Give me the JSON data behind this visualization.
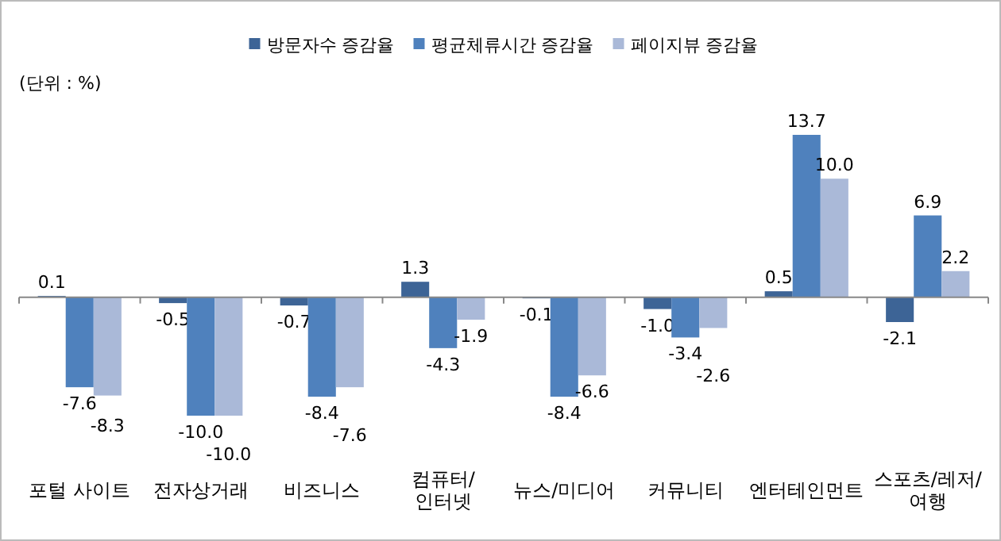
{
  "chart_data": {
    "type": "bar",
    "categories": [
      "포털 사이트",
      "전자상거래",
      "비즈니스",
      "컴퓨터/인터넷",
      "뉴스/미디어",
      "커뮤니티",
      "엔터테인먼트",
      "스포츠/레저/여행"
    ],
    "series": [
      {
        "name": "방문자수 증감율",
        "color": "#3d6496",
        "values": [
          0.1,
          -0.5,
          -0.7,
          1.3,
          -0.1,
          -1.0,
          0.5,
          -2.1
        ],
        "value_labels": [
          "0.1",
          "-0.5",
          "-0.7",
          "1.3",
          "-0.1",
          "-1.0",
          "0.5",
          "-2.1"
        ]
      },
      {
        "name": "평균체류시간 증감율",
        "color": "#4f81bd",
        "values": [
          -7.6,
          -10.0,
          -8.4,
          -4.3,
          -8.4,
          -3.4,
          13.7,
          6.9
        ],
        "value_labels": [
          "-7.6",
          "-10.0",
          "-8.4",
          "-4.3",
          "-8.4",
          "-3.4",
          "13.7",
          "6.9"
        ]
      },
      {
        "name": "페이지뷰 증감율",
        "color": "#aab9d8",
        "values": [
          -8.3,
          -10.0,
          -7.6,
          -1.9,
          -6.6,
          -2.6,
          10.0,
          2.2
        ],
        "value_labels": [
          "-8.3",
          "-10.0",
          "-7.6",
          "-1.9",
          "-6.6",
          "-2.6",
          "10.0",
          "2.2"
        ]
      }
    ],
    "annotations": [
      "(단위 : %)"
    ],
    "legend": "top"
  }
}
